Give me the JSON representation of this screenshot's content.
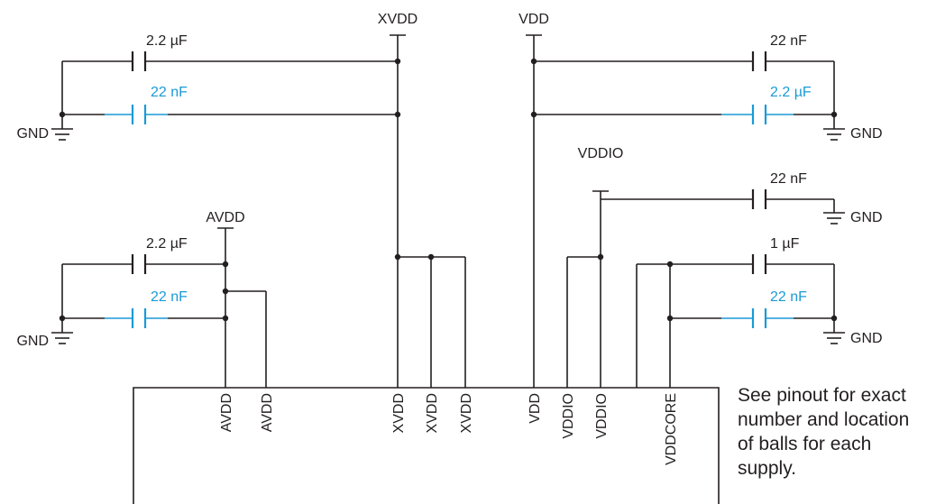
{
  "rails": {
    "xvdd": "XVDD",
    "vdd": "VDD",
    "vddio": "VDDIO",
    "avdd": "AVDD",
    "gnd": "GND"
  },
  "capacitors": {
    "xvdd_top": "2.2 µF",
    "xvdd_bottom": "22 nF",
    "vdd_top": "22 nF",
    "vdd_bottom": "2.2 µF",
    "vddio": "22 nF",
    "avdd_top": "2.2 µF",
    "avdd_bottom": "22 nF",
    "vddcore_top": "1 µF",
    "vddcore_bottom": "22 nF"
  },
  "pins": [
    "AVDD",
    "AVDD",
    "XVDD",
    "XVDD",
    "XVDD",
    "VDD",
    "VDDIO",
    "VDDIO",
    "VDDCORE"
  ],
  "note_lines": [
    "See pinout for exact",
    "number and location",
    "of balls for each",
    "supply."
  ],
  "colors": {
    "wire": "#231f20",
    "decoupling_highlight": "#1a9ad6"
  }
}
